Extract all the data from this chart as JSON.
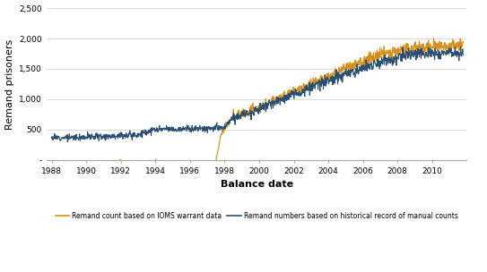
{
  "xlabel": "Balance date",
  "ylabel": "Remand prisoners",
  "xlabel_fontsize": 8,
  "ylabel_fontsize": 8,
  "xlim_start": 1987.7,
  "xlim_end": 2012.0,
  "ylim": [
    0,
    2500
  ],
  "yticks": [
    0,
    500,
    1000,
    1500,
    2000,
    2500
  ],
  "ytick_labels": [
    "-",
    "500",
    "1,000",
    "1,500",
    "2,000",
    "2,500"
  ],
  "xticks": [
    1988,
    1990,
    1992,
    1994,
    1996,
    1998,
    2000,
    2002,
    2004,
    2006,
    2008,
    2010
  ],
  "orange_color": "#D4901A",
  "blue_color": "#2B4F72",
  "bg_color": "#FFFFFF",
  "grid_color": "#CCCCCC",
  "legend_orange": "Remand count based on IOMS warrant data",
  "legend_blue": "Remand numbers based on historical record of manual counts",
  "orange_linewidth": 0.8,
  "blue_linewidth": 0.8,
  "seed": 12
}
